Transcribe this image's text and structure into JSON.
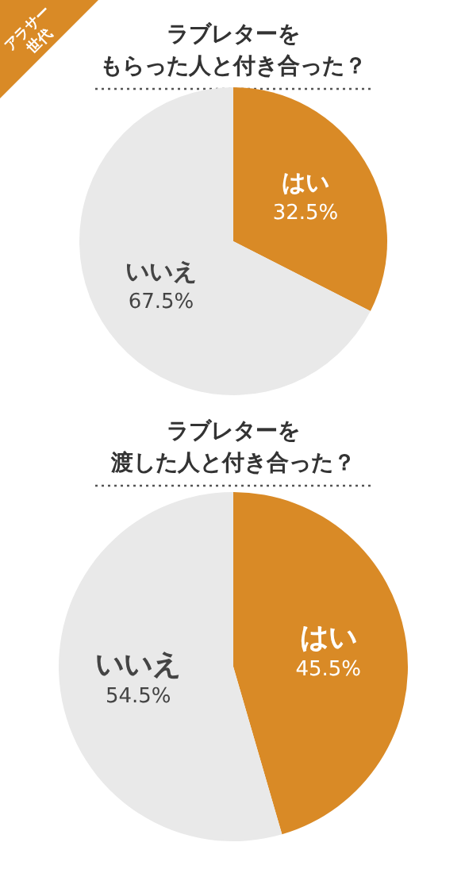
{
  "chart_data": [
    {
      "type": "pie",
      "title": "ラブレターを",
      "subtitle": "もらった人と付き合った？",
      "annotations": [
        "アラサー世代"
      ],
      "categories": [
        "はい",
        "いいえ"
      ],
      "values": [
        32.5,
        67.5
      ],
      "value_labels": [
        "32.5%",
        "67.5%"
      ],
      "colors": [
        "#d98a26",
        "#e9e9e9"
      ]
    },
    {
      "type": "pie",
      "title": "ラブレターを",
      "subtitle": "渡した人と付き合った？",
      "categories": [
        "はい",
        "いいえ"
      ],
      "values": [
        45.5,
        54.5
      ],
      "value_labels": [
        "45.5%",
        "54.5%"
      ],
      "colors": [
        "#d98a26",
        "#e9e9e9"
      ]
    }
  ]
}
